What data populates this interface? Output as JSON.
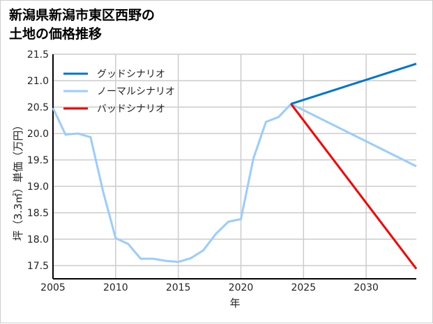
{
  "chart_data": {
    "type": "line",
    "title_line1": "新潟県新潟市東区西野の",
    "title_line2": "土地の価格推移",
    "xlabel": "年",
    "ylabel": "坪（3.3㎡）単価（万円）",
    "xlim": [
      2005,
      2034
    ],
    "ylim": [
      17.25,
      21.5
    ],
    "xticks": [
      2005,
      2010,
      2015,
      2020,
      2025,
      2030
    ],
    "yticks": [
      17.5,
      18.0,
      18.5,
      19.0,
      19.5,
      20.0,
      20.5,
      21.0,
      21.5
    ],
    "grid": true,
    "legend_position": "top-left",
    "series": [
      {
        "name": "グッドシナリオ",
        "color": "#0077cc",
        "x": [
          2024,
          2034
        ],
        "values": [
          20.56,
          21.32
        ]
      },
      {
        "name": "ノーマルシナリオ",
        "color": "#99ccff",
        "x": [
          2005,
          2006,
          2007,
          2008,
          2009,
          2010,
          2011,
          2012,
          2013,
          2014,
          2015,
          2016,
          2017,
          2018,
          2019,
          2020,
          2021,
          2022,
          2023,
          2024,
          2034
        ],
        "values": [
          20.48,
          19.98,
          20.0,
          19.93,
          18.9,
          18.02,
          17.91,
          17.63,
          17.63,
          17.59,
          17.57,
          17.64,
          17.79,
          18.1,
          18.33,
          18.38,
          19.53,
          20.22,
          20.31,
          20.56,
          19.38
        ]
      },
      {
        "name": "バッドシナリオ",
        "color": "#ff0000",
        "x": [
          2024,
          2034
        ],
        "values": [
          20.56,
          17.44
        ]
      }
    ]
  }
}
